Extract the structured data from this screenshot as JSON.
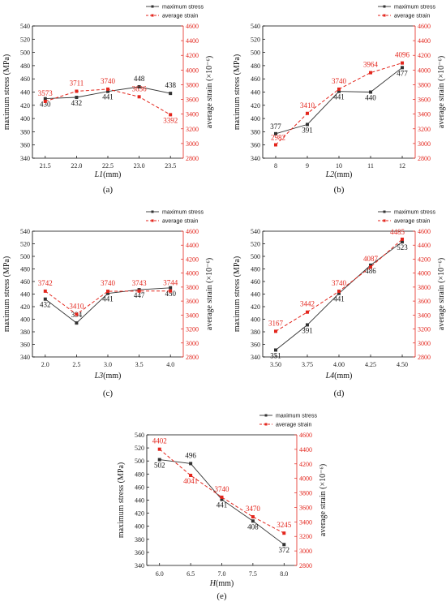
{
  "chart_data": [
    {
      "type": "line",
      "panel_label": "(a)",
      "xlabel_var": "L1",
      "xlabel_unit": "(mm)",
      "ylabel": "maximum stress (MPa)",
      "y2label": "average strain (×10⁻⁶)",
      "x": [
        21.5,
        22.0,
        22.5,
        23.0,
        23.5
      ],
      "x_ticks": [
        "21.5",
        "22.0",
        "22.5",
        "23.0",
        "23.5"
      ],
      "ylim": [
        340,
        540
      ],
      "y_ticks": [
        340,
        360,
        380,
        400,
        420,
        440,
        460,
        480,
        500,
        520,
        540
      ],
      "y2lim": [
        2800,
        4600
      ],
      "y2_ticks": [
        2800,
        3000,
        3200,
        3400,
        3600,
        3800,
        4000,
        4200,
        4400,
        4600
      ],
      "legend": [
        "maximum stress",
        "average strain"
      ],
      "series": [
        {
          "name": "maximum stress",
          "axis": "left",
          "color": "#333333",
          "values": [
            430,
            432,
            441,
            448,
            438
          ],
          "labels": [
            "430",
            "432",
            "441",
            "448",
            "438"
          ]
        },
        {
          "name": "average strain",
          "axis": "right",
          "color": "#e3261d",
          "values": [
            3573,
            3711,
            3740,
            3636,
            3392
          ],
          "labels": [
            "3573",
            "3711",
            "3740",
            "3636",
            "3392"
          ]
        }
      ]
    },
    {
      "type": "line",
      "panel_label": "(b)",
      "xlabel_var": "L2",
      "xlabel_unit": "(mm)",
      "ylabel": "maximum stress (MPa)",
      "y2label": "average strain (×10⁻⁶)",
      "x": [
        8,
        9,
        10,
        11,
        12
      ],
      "x_ticks": [
        "8",
        "9",
        "10",
        "11",
        "12"
      ],
      "ylim": [
        340,
        540
      ],
      "y_ticks": [
        340,
        360,
        380,
        400,
        420,
        440,
        460,
        480,
        500,
        520,
        540
      ],
      "y2lim": [
        2800,
        4600
      ],
      "y2_ticks": [
        2800,
        3000,
        3200,
        3400,
        3600,
        3800,
        4000,
        4200,
        4400,
        4600
      ],
      "legend": [
        "maximum stress",
        "average strain"
      ],
      "series": [
        {
          "name": "maximum stress",
          "axis": "left",
          "color": "#333333",
          "values": [
            377,
            391,
            441,
            440,
            477
          ],
          "labels": [
            "377",
            "391",
            "441",
            "440",
            "477"
          ]
        },
        {
          "name": "average strain",
          "axis": "right",
          "color": "#e3261d",
          "values": [
            2982,
            3410,
            3740,
            3964,
            4096
          ],
          "labels": [
            "2982",
            "3410",
            "3740",
            "3964",
            "4096"
          ]
        }
      ]
    },
    {
      "type": "line",
      "panel_label": "(c)",
      "xlabel_var": "L3",
      "xlabel_unit": "(mm)",
      "ylabel": "maximum stress (MPa)",
      "y2label": "average strain (×10⁻⁶)",
      "x": [
        2.0,
        2.5,
        3.0,
        3.5,
        4.0
      ],
      "x_ticks": [
        "2.0",
        "2.5",
        "3.0",
        "3.5",
        "4.0"
      ],
      "ylim": [
        340,
        540
      ],
      "y_ticks": [
        340,
        360,
        380,
        400,
        420,
        440,
        460,
        480,
        500,
        520,
        540
      ],
      "y2lim": [
        2800,
        4600
      ],
      "y2_ticks": [
        2800,
        3000,
        3200,
        3400,
        3600,
        3800,
        4000,
        4200,
        4400,
        4600
      ],
      "legend": [
        "maximum stress",
        "average strain"
      ],
      "series": [
        {
          "name": "maximum stress",
          "axis": "left",
          "color": "#333333",
          "values": [
            432,
            394,
            441,
            447,
            450
          ],
          "labels": [
            "432",
            "394",
            "441",
            "447",
            "450"
          ]
        },
        {
          "name": "average strain",
          "axis": "right",
          "color": "#e3261d",
          "values": [
            3742,
            3410,
            3740,
            3743,
            3744
          ],
          "labels": [
            "3742",
            "3410",
            "3740",
            "3743",
            "3744"
          ]
        }
      ]
    },
    {
      "type": "line",
      "panel_label": "(d)",
      "xlabel_var": "L4",
      "xlabel_unit": "(mm)",
      "ylabel": "maximum stress (MPa)",
      "y2label": "average strain (×10⁻⁶)",
      "x": [
        3.5,
        3.75,
        4.0,
        4.25,
        4.5
      ],
      "x_ticks": [
        "3.50",
        "3.75",
        "4.00",
        "4.25",
        "4.50"
      ],
      "ylim": [
        340,
        540
      ],
      "y_ticks": [
        340,
        360,
        380,
        400,
        420,
        440,
        460,
        480,
        500,
        520,
        540
      ],
      "y2lim": [
        2800,
        4600
      ],
      "y2_ticks": [
        2800,
        3000,
        3200,
        3400,
        3600,
        3800,
        4000,
        4200,
        4400,
        4600
      ],
      "legend": [
        "maximum stress",
        "average strain"
      ],
      "series": [
        {
          "name": "maximum stress",
          "axis": "left",
          "color": "#333333",
          "values": [
            351,
            391,
            441,
            486,
            523
          ],
          "labels": [
            "351",
            "391",
            "441",
            "486",
            "523"
          ]
        },
        {
          "name": "average strain",
          "axis": "right",
          "color": "#e3261d",
          "values": [
            3167,
            3442,
            3740,
            4087,
            4485
          ],
          "labels": [
            "3167",
            "3442",
            "3740",
            "4087",
            "4485"
          ]
        }
      ]
    },
    {
      "type": "line",
      "panel_label": "(e)",
      "xlabel_var": "H",
      "xlabel_unit": "(mm)",
      "ylabel": "maximum stress (MPa)",
      "y2label": "average strain (×10⁻⁶)",
      "x": [
        6.0,
        6.5,
        7.0,
        7.5,
        8.0
      ],
      "x_ticks": [
        "6.0",
        "6.5",
        "7.0",
        "7.5",
        "8.0"
      ],
      "ylim": [
        340,
        540
      ],
      "y_ticks": [
        340,
        360,
        380,
        400,
        420,
        440,
        460,
        480,
        500,
        520,
        540
      ],
      "y2lim": [
        2800,
        4600
      ],
      "y2_ticks": [
        2800,
        3000,
        3200,
        3400,
        3600,
        3800,
        4000,
        4200,
        4400,
        4600
      ],
      "legend": [
        "maximum stress",
        "average strain"
      ],
      "series": [
        {
          "name": "maximum stress",
          "axis": "left",
          "color": "#333333",
          "values": [
            502,
            496,
            441,
            408,
            372
          ],
          "labels": [
            "502",
            "496",
            "441",
            "408",
            "372"
          ]
        },
        {
          "name": "average strain",
          "axis": "right",
          "color": "#e3261d",
          "values": [
            4402,
            4041,
            3740,
            3470,
            3245
          ],
          "labels": [
            "4402",
            "4041",
            "3740",
            "3470",
            "3245"
          ]
        }
      ]
    }
  ]
}
